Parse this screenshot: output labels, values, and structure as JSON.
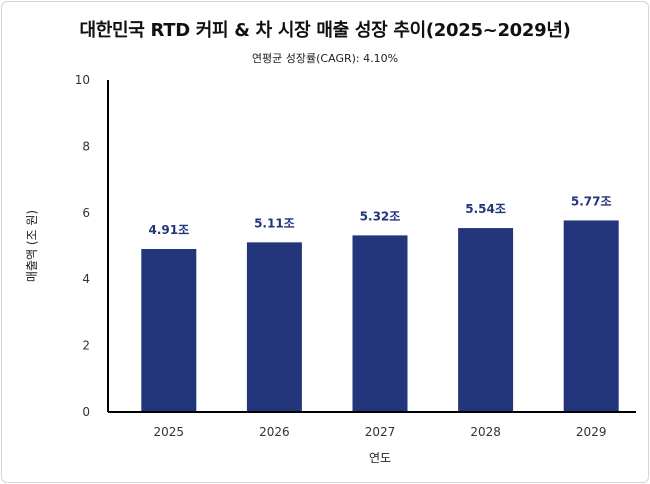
{
  "chart_data": {
    "type": "bar",
    "title": "대한민국 RTD 커피 & 차 시장 매출 성장 추이(2025~2029년)",
    "subtitle": "연평균 성장률(CAGR): 4.10%",
    "xlabel": "연도",
    "ylabel": "매출액 (조 원)",
    "categories": [
      "2025",
      "2026",
      "2027",
      "2028",
      "2029"
    ],
    "values": [
      4.91,
      5.11,
      5.32,
      5.54,
      5.77
    ],
    "data_labels": [
      "4.91조",
      "5.11조",
      "5.32조",
      "5.54조",
      "5.77조"
    ],
    "ylim": [
      0,
      10
    ],
    "yticks": [
      "0",
      "2",
      "4",
      "6",
      "8",
      "10"
    ],
    "grid": false,
    "legend": "none",
    "bar_color": "#23367b"
  }
}
